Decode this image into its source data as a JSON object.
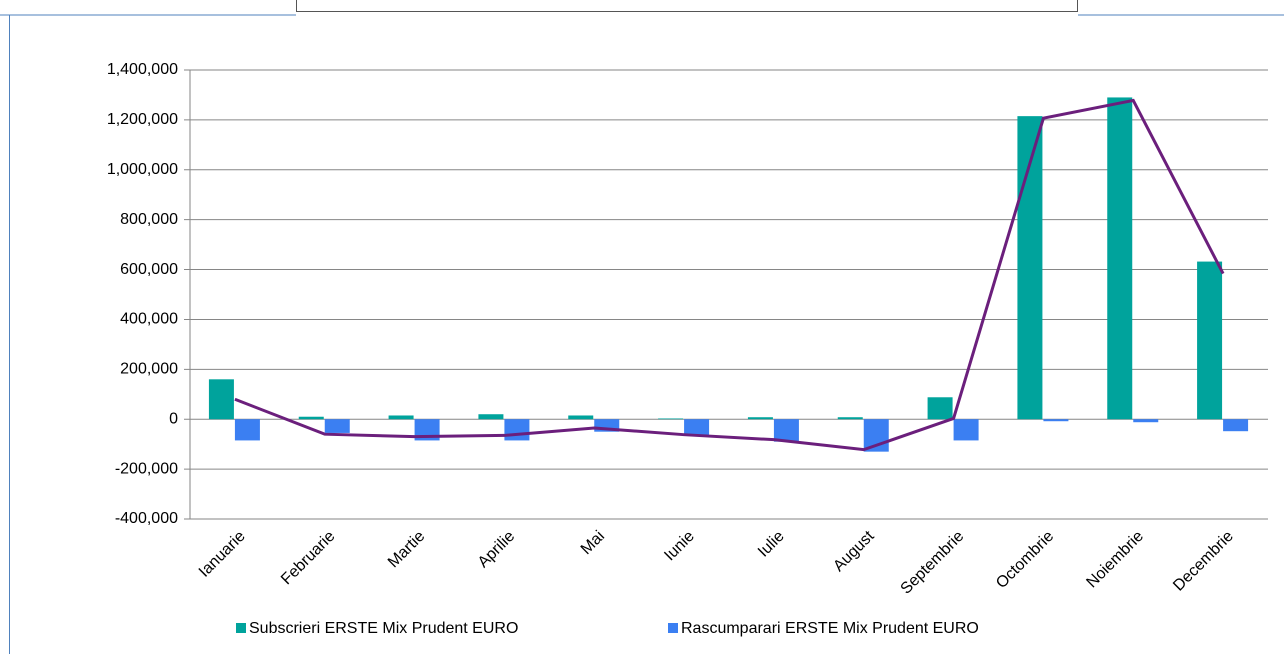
{
  "chart_data": {
    "type": "bar",
    "categories": [
      "Ianuarie",
      "Februarie",
      "Martie",
      "Aprilie",
      "Mai",
      "Iunie",
      "Iulie",
      "August",
      "Septembrie",
      "Octombrie",
      "Noiembrie",
      "Decembrie"
    ],
    "series": [
      {
        "name": "Subscrieri ERSTE Mix Prudent EURO",
        "color": "#00a39c",
        "type": "bar",
        "values": [
          160000,
          10000,
          15000,
          20000,
          15000,
          3000,
          8000,
          8000,
          88000,
          1215000,
          1290000,
          632000
        ]
      },
      {
        "name": "Rascumparari ERSTE Mix Prudent EURO",
        "color": "#3b7ff2",
        "type": "bar",
        "values": [
          -85000,
          -55000,
          -85000,
          -85000,
          -50000,
          -65000,
          -90000,
          -130000,
          -85000,
          -8000,
          -12000,
          -48000
        ]
      },
      {
        "color": "#6b1f7c",
        "type": "line",
        "values": [
          80000,
          -60000,
          -70000,
          -65000,
          -35000,
          -62000,
          -82000,
          -122000,
          3000,
          1207000,
          1278000,
          584000
        ]
      }
    ],
    "ylim": [
      -400000,
      1400000
    ],
    "yticks": [
      {
        "value": -400000,
        "label": "-400,000"
      },
      {
        "value": -200000,
        "label": "-200,000"
      },
      0,
      {
        "value": 200000,
        "label": "200,000"
      },
      {
        "value": 400000,
        "label": "400,000"
      },
      {
        "value": 600000,
        "label": "600,000"
      },
      {
        "value": 800000,
        "label": "800,000"
      },
      {
        "value": 1000000,
        "label": "1,000,000"
      },
      {
        "value": 1200000,
        "label": "1,200,000"
      },
      {
        "value": 1400000,
        "label": "1,400,000"
      }
    ],
    "grid": true,
    "legend": "bottom"
  }
}
